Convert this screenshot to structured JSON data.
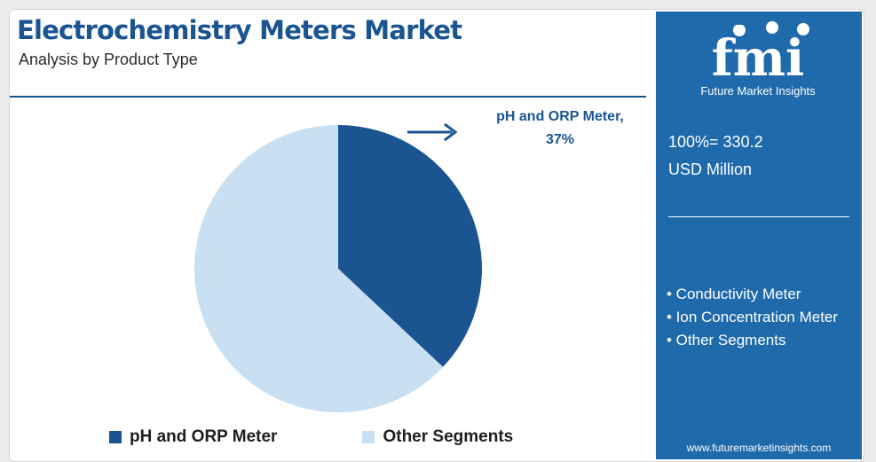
{
  "header": {
    "title": "Electrochemistry Meters Market",
    "subtitle": "Analysis by Product Type"
  },
  "chart_data": {
    "type": "pie",
    "categories": [
      "pH and ORP Meter",
      "Other Segments"
    ],
    "values": [
      37,
      63
    ],
    "colors": [
      "#1a5592",
      "#c8e0f1"
    ],
    "title": "Electrochemistry Meters Market",
    "subtitle": "Analysis by Product Type",
    "legend_placement": "bottom",
    "annotation": {
      "label": "pH and ORP Meter,",
      "value": "37%"
    }
  },
  "legend": {
    "items": [
      {
        "label": "pH and ORP Meter",
        "color": "#1a5592"
      },
      {
        "label": "Other Segments",
        "color": "#c8e0f1"
      }
    ]
  },
  "sidebar": {
    "logo_text": "fmi",
    "logo_subtitle": "Future Market Insights",
    "total_line1": "100%= 330.2",
    "total_line2": "USD Million",
    "segments": [
      "• Conductivity Meter",
      "• Ion Concentration Meter",
      "• Other Segments"
    ],
    "website": "www.futuremarketinsights.com"
  },
  "colors": {
    "accent": "#1a5592",
    "light": "#c8e0f1",
    "sidebar_bg": "#1f6aab"
  }
}
